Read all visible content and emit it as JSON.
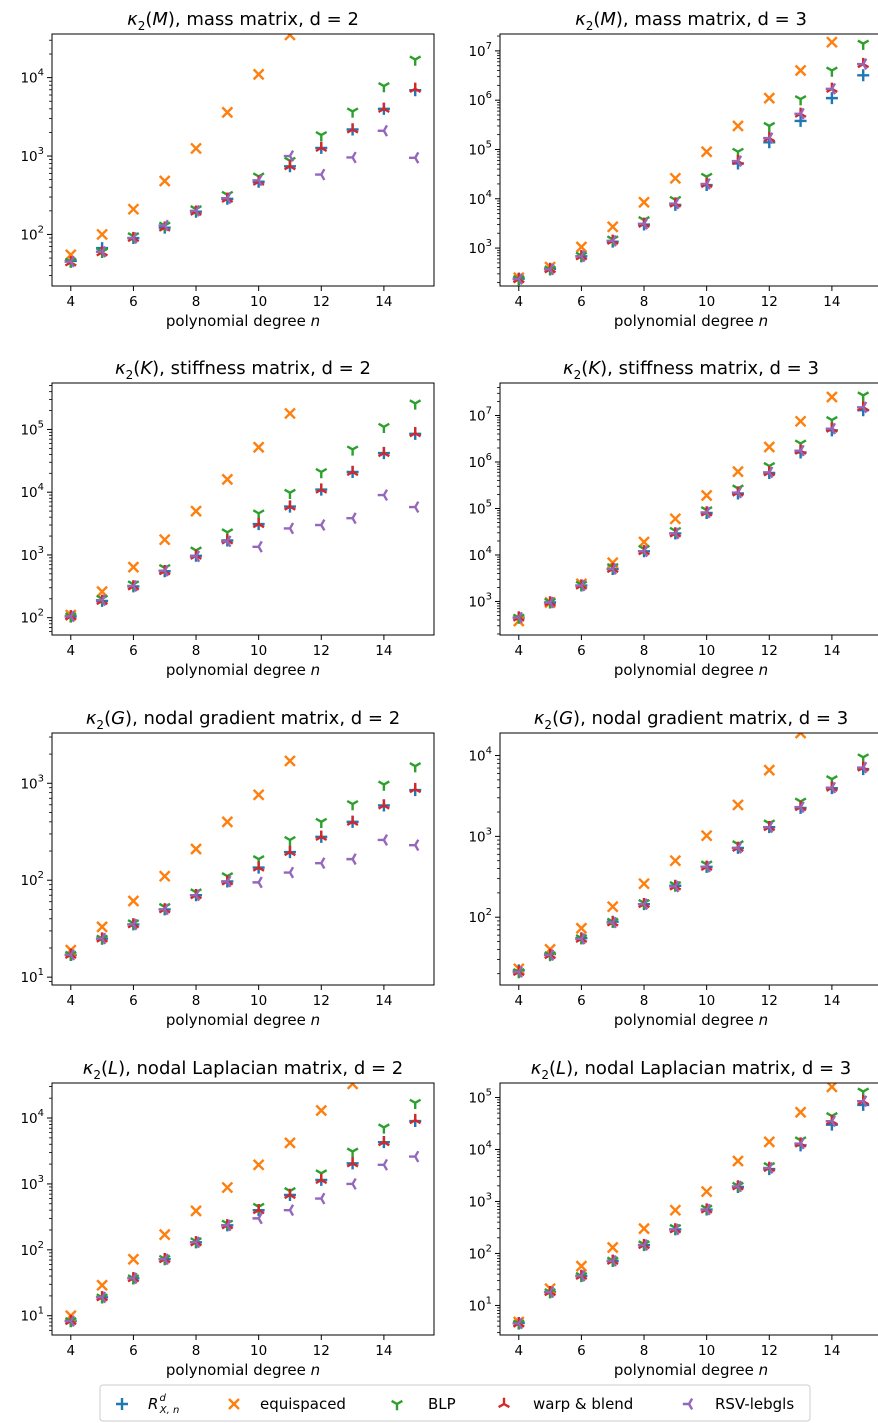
{
  "legend": [
    {
      "key": "rxn",
      "label_main": "R",
      "label_sup": "d",
      "label_sub": "X, n",
      "color": "#1f77b4",
      "marker": "plus"
    },
    {
      "key": "equi",
      "label": "equispaced",
      "color": "#ff7f0e",
      "marker": "x"
    },
    {
      "key": "blp",
      "label": "BLP",
      "color": "#2ca02c",
      "marker": "tri-down"
    },
    {
      "key": "warp",
      "label": "warp & blend",
      "color": "#d62728",
      "marker": "tri-up"
    },
    {
      "key": "rsv",
      "label": "RSV-lebgls",
      "color": "#9467bd",
      "marker": "tri-left"
    }
  ],
  "chart_data": [
    {
      "type": "scatter",
      "yscale": "log",
      "title_sym": "M",
      "title_rest": ", mass matrix, d = 2",
      "xlabel": "polynomial degree",
      "xlabel_var": "n",
      "xlim": [
        3.4,
        15.6
      ],
      "ylim": [
        22,
        36000
      ],
      "xticks": [
        4,
        6,
        8,
        10,
        12,
        14
      ],
      "ydecades": [
        2,
        3,
        4
      ],
      "x": [
        4,
        5,
        6,
        7,
        8,
        9,
        10,
        11,
        12,
        13,
        14,
        15
      ],
      "series": [
        {
          "key": "rxn",
          "values": [
            46,
            67,
            90,
            122,
            195,
            285,
            470,
            740,
            1270,
            2180,
            4000,
            6900
          ]
        },
        {
          "key": "equi",
          "values": [
            55,
            100,
            210,
            480,
            1250,
            3600,
            11000,
            35000,
            null,
            null,
            null,
            null
          ]
        },
        {
          "key": "blp",
          "values": [
            45,
            60,
            95,
            130,
            210,
            320,
            550,
            870,
            1850,
            3700,
            7800,
            17000
          ]
        },
        {
          "key": "warp",
          "values": [
            44,
            59,
            90,
            122,
            195,
            285,
            470,
            740,
            1270,
            2180,
            4000,
            7200
          ]
        },
        {
          "key": "rsv",
          "values": [
            45,
            60,
            90,
            130,
            200,
            290,
            490,
            1000,
            580,
            960,
            2100,
            950
          ]
        }
      ]
    },
    {
      "type": "scatter",
      "yscale": "log",
      "title_sym": "M",
      "title_rest": ", mass matrix, d = 3",
      "xlabel": "polynomial degree",
      "xlabel_var": "n",
      "xlim": [
        3.4,
        15.6
      ],
      "ylim": [
        170,
        22000000
      ],
      "xticks": [
        4,
        6,
        8,
        10,
        12,
        14
      ],
      "ydecades": [
        3,
        4,
        5,
        6,
        7
      ],
      "x": [
        4,
        5,
        6,
        7,
        8,
        9,
        10,
        11,
        12,
        13,
        14,
        15
      ],
      "series": [
        {
          "key": "rxn",
          "values": [
            240,
            380,
            680,
            1350,
            3000,
            7500,
            19000,
            52000,
            140000,
            380000,
            1100000,
            3200000
          ]
        },
        {
          "key": "equi",
          "values": [
            250,
            410,
            1050,
            2700,
            8500,
            26000,
            90000,
            300000,
            1100000,
            4000000,
            15000000,
            null
          ]
        },
        {
          "key": "blp",
          "values": [
            235,
            370,
            700,
            1500,
            3700,
            9500,
            28000,
            90000,
            300000,
            1050000,
            4000000,
            14000000
          ]
        },
        {
          "key": "warp",
          "values": [
            235,
            370,
            680,
            1400,
            3100,
            8000,
            20000,
            58000,
            170000,
            530000,
            1700000,
            5400000
          ]
        },
        {
          "key": "rsv",
          "values": [
            235,
            370,
            680,
            1400,
            3100,
            8000,
            20000,
            58000,
            170000,
            530000,
            1700000,
            5400000
          ]
        }
      ]
    },
    {
      "type": "scatter",
      "yscale": "log",
      "title_sym": "K",
      "title_rest": ", stiffness matrix, d = 2",
      "xlabel": "polynomial degree",
      "xlabel_var": "n",
      "xlim": [
        3.4,
        15.6
      ],
      "ylim": [
        53,
        550000
      ],
      "xticks": [
        4,
        6,
        8,
        10,
        12,
        14
      ],
      "ydecades": [
        2,
        3,
        4,
        5
      ],
      "x": [
        4,
        5,
        6,
        7,
        8,
        9,
        10,
        11,
        12,
        13,
        14,
        15
      ],
      "series": [
        {
          "key": "rxn",
          "values": [
            105,
            185,
            315,
            550,
            970,
            1700,
            3100,
            5900,
            11000,
            21000,
            42000,
            85000
          ]
        },
        {
          "key": "equi",
          "values": [
            110,
            260,
            640,
            1750,
            5000,
            16000,
            52000,
            180000,
            null,
            null,
            null,
            null
          ]
        },
        {
          "key": "blp",
          "values": [
            105,
            200,
            340,
            620,
            1180,
            2300,
            4600,
            9800,
            21000,
            48000,
            110000,
            260000
          ]
        },
        {
          "key": "warp",
          "values": [
            105,
            185,
            315,
            550,
            970,
            1700,
            3100,
            5900,
            11000,
            21000,
            42000,
            87000
          ]
        },
        {
          "key": "rsv",
          "values": [
            105,
            190,
            320,
            560,
            950,
            1650,
            1350,
            2650,
            3000,
            3850,
            9000,
            5800
          ]
        }
      ]
    },
    {
      "type": "scatter",
      "yscale": "log",
      "title_sym": "K",
      "title_rest": ", stiffness matrix, d = 3",
      "xlabel": "polynomial degree",
      "xlabel_var": "n",
      "xlim": [
        3.4,
        15.6
      ],
      "ylim": [
        190,
        50000000
      ],
      "xticks": [
        4,
        6,
        8,
        10,
        12,
        14
      ],
      "ydecades": [
        3,
        4,
        5,
        6,
        7
      ],
      "x": [
        4,
        5,
        6,
        7,
        8,
        9,
        10,
        11,
        12,
        13,
        14,
        15
      ],
      "series": [
        {
          "key": "rxn",
          "values": [
            450,
            950,
            2200,
            5000,
            12000,
            29000,
            80000,
            210000,
            580000,
            1600000,
            4800000,
            13000000
          ]
        },
        {
          "key": "equi",
          "values": [
            380,
            950,
            2400,
            6800,
            19000,
            60000,
            190000,
            620000,
            2100000,
            7500000,
            25000000,
            null
          ]
        },
        {
          "key": "blp",
          "values": [
            450,
            980,
            2300,
            5500,
            13500,
            33000,
            92000,
            270000,
            820000,
            2500000,
            8000000,
            27000000
          ]
        },
        {
          "key": "warp",
          "values": [
            450,
            950,
            2200,
            5000,
            12000,
            29000,
            82000,
            220000,
            600000,
            1750000,
            5200000,
            15000000
          ]
        },
        {
          "key": "rsv",
          "values": [
            450,
            950,
            2200,
            5000,
            12000,
            29000,
            82000,
            220000,
            600000,
            1750000,
            5200000,
            15000000
          ]
        }
      ]
    },
    {
      "type": "scatter",
      "yscale": "log",
      "title_sym": "G",
      "title_rest": ", nodal gradient matrix, d = 2",
      "xlabel": "polynomial degree",
      "xlabel_var": "n",
      "xlim": [
        3.4,
        15.6
      ],
      "ylim": [
        8.3,
        3300
      ],
      "xticks": [
        4,
        6,
        8,
        10,
        12,
        14
      ],
      "ydecades": [
        1,
        2,
        3
      ],
      "x": [
        4,
        5,
        6,
        7,
        8,
        9,
        10,
        11,
        12,
        13,
        14,
        15
      ],
      "series": [
        {
          "key": "rxn",
          "values": [
            17,
            25,
            35,
            50,
            70,
            97,
            135,
            195,
            280,
            400,
            590,
            850
          ]
        },
        {
          "key": "equi",
          "values": [
            19,
            33,
            61,
            110,
            210,
            400,
            760,
            1700,
            null,
            null,
            null,
            null
          ]
        },
        {
          "key": "blp",
          "values": [
            17,
            25,
            36,
            53,
            75,
            110,
            165,
            260,
            400,
            610,
            970,
            1500
          ]
        },
        {
          "key": "warp",
          "values": [
            17,
            25,
            35,
            50,
            70,
            97,
            135,
            195,
            280,
            400,
            590,
            870
          ]
        },
        {
          "key": "rsv",
          "values": [
            17,
            25,
            35,
            50,
            70,
            97,
            95,
            120,
            150,
            165,
            260,
            230
          ]
        }
      ]
    },
    {
      "type": "scatter",
      "yscale": "log",
      "title_sym": "G",
      "title_rest": ", nodal gradient matrix, d = 3",
      "xlabel": "polynomial degree",
      "xlabel_var": "n",
      "xlim": [
        3.4,
        15.6
      ],
      "ylim": [
        14.5,
        19000
      ],
      "xticks": [
        4,
        6,
        8,
        10,
        12,
        14
      ],
      "ydecades": [
        2,
        3,
        4
      ],
      "x": [
        4,
        5,
        6,
        7,
        8,
        9,
        10,
        11,
        12,
        13,
        14,
        15
      ],
      "series": [
        {
          "key": "rxn",
          "values": [
            22,
            35,
            55,
            88,
            145,
            245,
            420,
            720,
            1300,
            2250,
            3950,
            6800
          ]
        },
        {
          "key": "equi",
          "values": [
            23,
            40,
            73,
            135,
            260,
            500,
            1020,
            2450,
            6600,
            19000,
            null,
            null
          ]
        },
        {
          "key": "blp",
          "values": [
            21,
            34,
            55,
            88,
            150,
            250,
            450,
            800,
            1450,
            2700,
            5100,
            9500
          ]
        },
        {
          "key": "warp",
          "values": [
            21,
            34,
            54,
            86,
            145,
            240,
            420,
            720,
            1300,
            2300,
            4000,
            7100
          ]
        },
        {
          "key": "rsv",
          "values": [
            21,
            34,
            54,
            86,
            145,
            240,
            420,
            720,
            1300,
            2300,
            4000,
            7100
          ]
        }
      ]
    },
    {
      "type": "scatter",
      "yscale": "log",
      "title_sym": "L",
      "title_rest": ", nodal Laplacian matrix, d = 2",
      "xlabel": "polynomial degree",
      "xlabel_var": "n",
      "xlim": [
        3.4,
        15.6
      ],
      "ylim": [
        5.1,
        34000
      ],
      "xticks": [
        4,
        6,
        8,
        10,
        12,
        14
      ],
      "ydecades": [
        1,
        2,
        3,
        4
      ],
      "x": [
        4,
        5,
        6,
        7,
        8,
        9,
        10,
        11,
        12,
        13,
        14,
        15
      ],
      "series": [
        {
          "key": "rxn",
          "values": [
            8.3,
            19,
            37,
            72,
            130,
            235,
            400,
            680,
            1150,
            2050,
            4300,
            9000
          ]
        },
        {
          "key": "equi",
          "values": [
            10,
            29,
            72,
            170,
            390,
            880,
            1950,
            4200,
            13000,
            33000,
            null,
            null
          ]
        },
        {
          "key": "blp",
          "values": [
            8.3,
            19,
            37,
            73,
            135,
            250,
            450,
            780,
            1450,
            3100,
            7200,
            17000
          ]
        },
        {
          "key": "warp",
          "values": [
            8.3,
            19,
            37,
            72,
            130,
            235,
            400,
            680,
            1150,
            2050,
            4300,
            9300
          ]
        },
        {
          "key": "rsv",
          "values": [
            8.3,
            19,
            37,
            72,
            130,
            235,
            300,
            400,
            600,
            1000,
            1950,
            2600
          ]
        }
      ]
    },
    {
      "type": "scatter",
      "yscale": "log",
      "title_sym": "L",
      "title_rest": ", nodal Laplacian matrix, d = 3",
      "xlabel": "polynomial degree",
      "xlabel_var": "n",
      "xlim": [
        3.4,
        15.6
      ],
      "ylim": [
        2.7,
        190000
      ],
      "xticks": [
        4,
        6,
        8,
        10,
        12,
        14
      ],
      "ydecades": [
        1,
        2,
        3,
        4,
        5
      ],
      "x": [
        4,
        5,
        6,
        7,
        8,
        9,
        10,
        11,
        12,
        13,
        14,
        15
      ],
      "series": [
        {
          "key": "rxn",
          "values": [
            4.6,
            18,
            37,
            72,
            145,
            290,
            700,
            1900,
            4200,
            12000,
            30000,
            72000
          ]
        },
        {
          "key": "equi",
          "values": [
            4.8,
            21,
            57,
            130,
            300,
            680,
            1550,
            6000,
            14000,
            52000,
            160000,
            null
          ]
        },
        {
          "key": "blp",
          "values": [
            4.5,
            18,
            37,
            73,
            150,
            310,
            730,
            2000,
            4800,
            15000,
            44000,
            130000
          ]
        },
        {
          "key": "warp",
          "values": [
            4.5,
            18,
            37,
            72,
            145,
            290,
            700,
            1950,
            4400,
            13000,
            35000,
            85000
          ]
        },
        {
          "key": "rsv",
          "values": [
            4.5,
            18,
            37,
            72,
            145,
            290,
            700,
            1950,
            4400,
            13000,
            35000,
            85000
          ]
        }
      ]
    }
  ]
}
